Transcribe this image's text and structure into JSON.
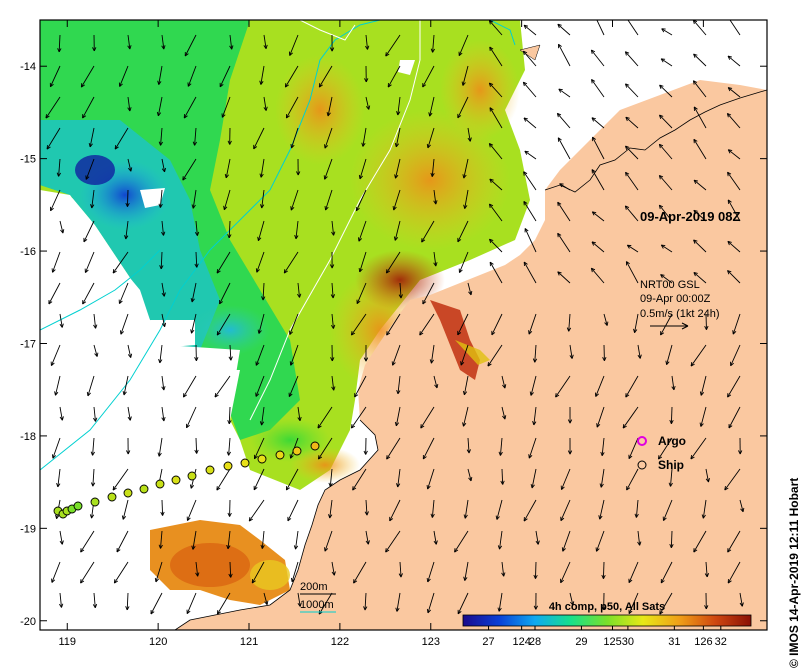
{
  "map": {
    "title": "09-Apr-2019 08Z",
    "x_ticks": [
      "119",
      "120",
      "121",
      "122",
      "123",
      "124",
      "125",
      "126"
    ],
    "y_ticks": [
      "-14",
      "-15",
      "-16",
      "-17",
      "-18",
      "-19",
      "-20"
    ],
    "lon_range": [
      118.7,
      126.7
    ],
    "lat_range": [
      -20.1,
      -13.5
    ]
  },
  "currents": {
    "label_line1": "NRT00 GSL",
    "label_line2": "09-Apr 00:00Z",
    "label_line3": "0.5m/s (1kt 24h)"
  },
  "legend": {
    "argo_label": "Argo",
    "ship_label": "Ship",
    "argo_color": "#e000e0"
  },
  "contours": {
    "label_200": "200m",
    "label_1000": "1000m",
    "color_200": "#000000",
    "color_1000": "#00d0d0"
  },
  "colorbar": {
    "title": "4h comp, p50, All Sats",
    "ticks": [
      "27",
      "28",
      "29",
      "30",
      "31",
      "32"
    ],
    "colors": [
      "#1a0a8c",
      "#0a3fd6",
      "#10a9f0",
      "#18e08a",
      "#7ae02a",
      "#e8e818",
      "#f0a018",
      "#d04810",
      "#8a1005"
    ]
  },
  "credit": "© IMOS 14-Apr-2019 12:11 Hobart",
  "colors": {
    "land": "#fac8a0",
    "frame": "#000000"
  }
}
